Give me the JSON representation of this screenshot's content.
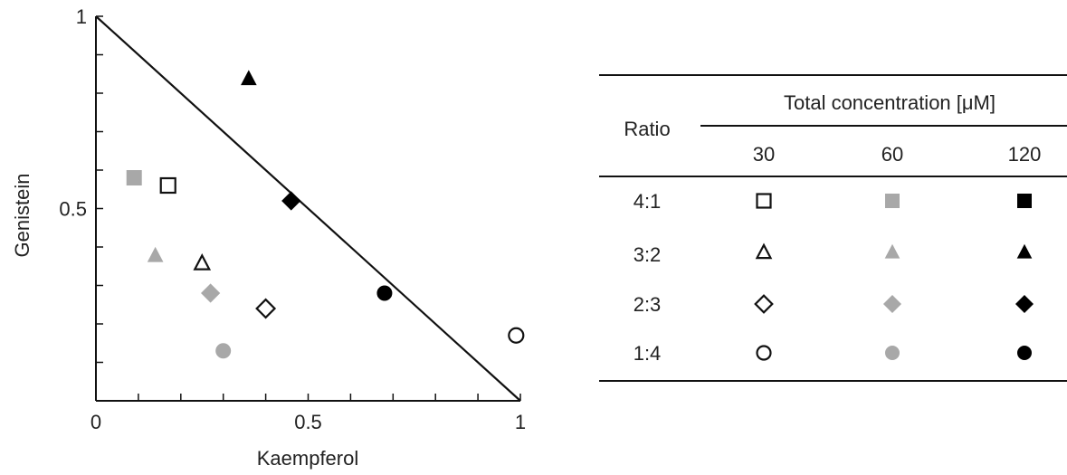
{
  "chart_data": {
    "type": "scatter",
    "xlabel": "Kaempferol",
    "ylabel": "Genistein",
    "xlim": [
      0,
      1
    ],
    "ylim": [
      0,
      1
    ],
    "x_ticks": [
      "0",
      "0.5",
      "1"
    ],
    "y_ticks": [
      "0.5",
      "1"
    ],
    "reference_line": {
      "from": [
        0,
        1
      ],
      "to": [
        1,
        0
      ]
    },
    "colors": {
      "30": "#111111",
      "60": "#a8a8a8",
      "120": "#000000"
    },
    "series": [
      {
        "ratio": "4:1",
        "concentration": "30",
        "marker": "square-open",
        "x": 0.17,
        "y": 0.56
      },
      {
        "ratio": "4:1",
        "concentration": "60",
        "marker": "square",
        "x": 0.09,
        "y": 0.58
      },
      {
        "ratio": "3:2",
        "concentration": "30",
        "marker": "triangle-open",
        "x": 0.25,
        "y": 0.36
      },
      {
        "ratio": "3:2",
        "concentration": "60",
        "marker": "triangle",
        "x": 0.14,
        "y": 0.38
      },
      {
        "ratio": "3:2",
        "concentration": "120",
        "marker": "triangle",
        "x": 0.36,
        "y": 0.84
      },
      {
        "ratio": "2:3",
        "concentration": "30",
        "marker": "diamond-open",
        "x": 0.4,
        "y": 0.24
      },
      {
        "ratio": "2:3",
        "concentration": "60",
        "marker": "diamond",
        "x": 0.27,
        "y": 0.28
      },
      {
        "ratio": "2:3",
        "concentration": "120",
        "marker": "diamond",
        "x": 0.46,
        "y": 0.52
      },
      {
        "ratio": "1:4",
        "concentration": "30",
        "marker": "circle-open",
        "x": 0.99,
        "y": 0.17
      },
      {
        "ratio": "1:4",
        "concentration": "60",
        "marker": "circle",
        "x": 0.3,
        "y": 0.13
      },
      {
        "ratio": "1:4",
        "concentration": "120",
        "marker": "circle",
        "x": 0.68,
        "y": 0.28
      }
    ]
  },
  "legend_table": {
    "row_header": "Ratio",
    "group_header": "Total concentration [μM]",
    "columns": [
      "30",
      "60",
      "120"
    ],
    "rows": [
      {
        "label": "4:1",
        "markers": [
          "square-open",
          "square",
          "square"
        ]
      },
      {
        "label": "3:2",
        "markers": [
          "triangle-open",
          "triangle",
          "triangle"
        ]
      },
      {
        "label": "2:3",
        "markers": [
          "diamond-open",
          "diamond",
          "diamond"
        ]
      },
      {
        "label": "1:4",
        "markers": [
          "circle-open",
          "circle",
          "circle"
        ]
      }
    ]
  }
}
